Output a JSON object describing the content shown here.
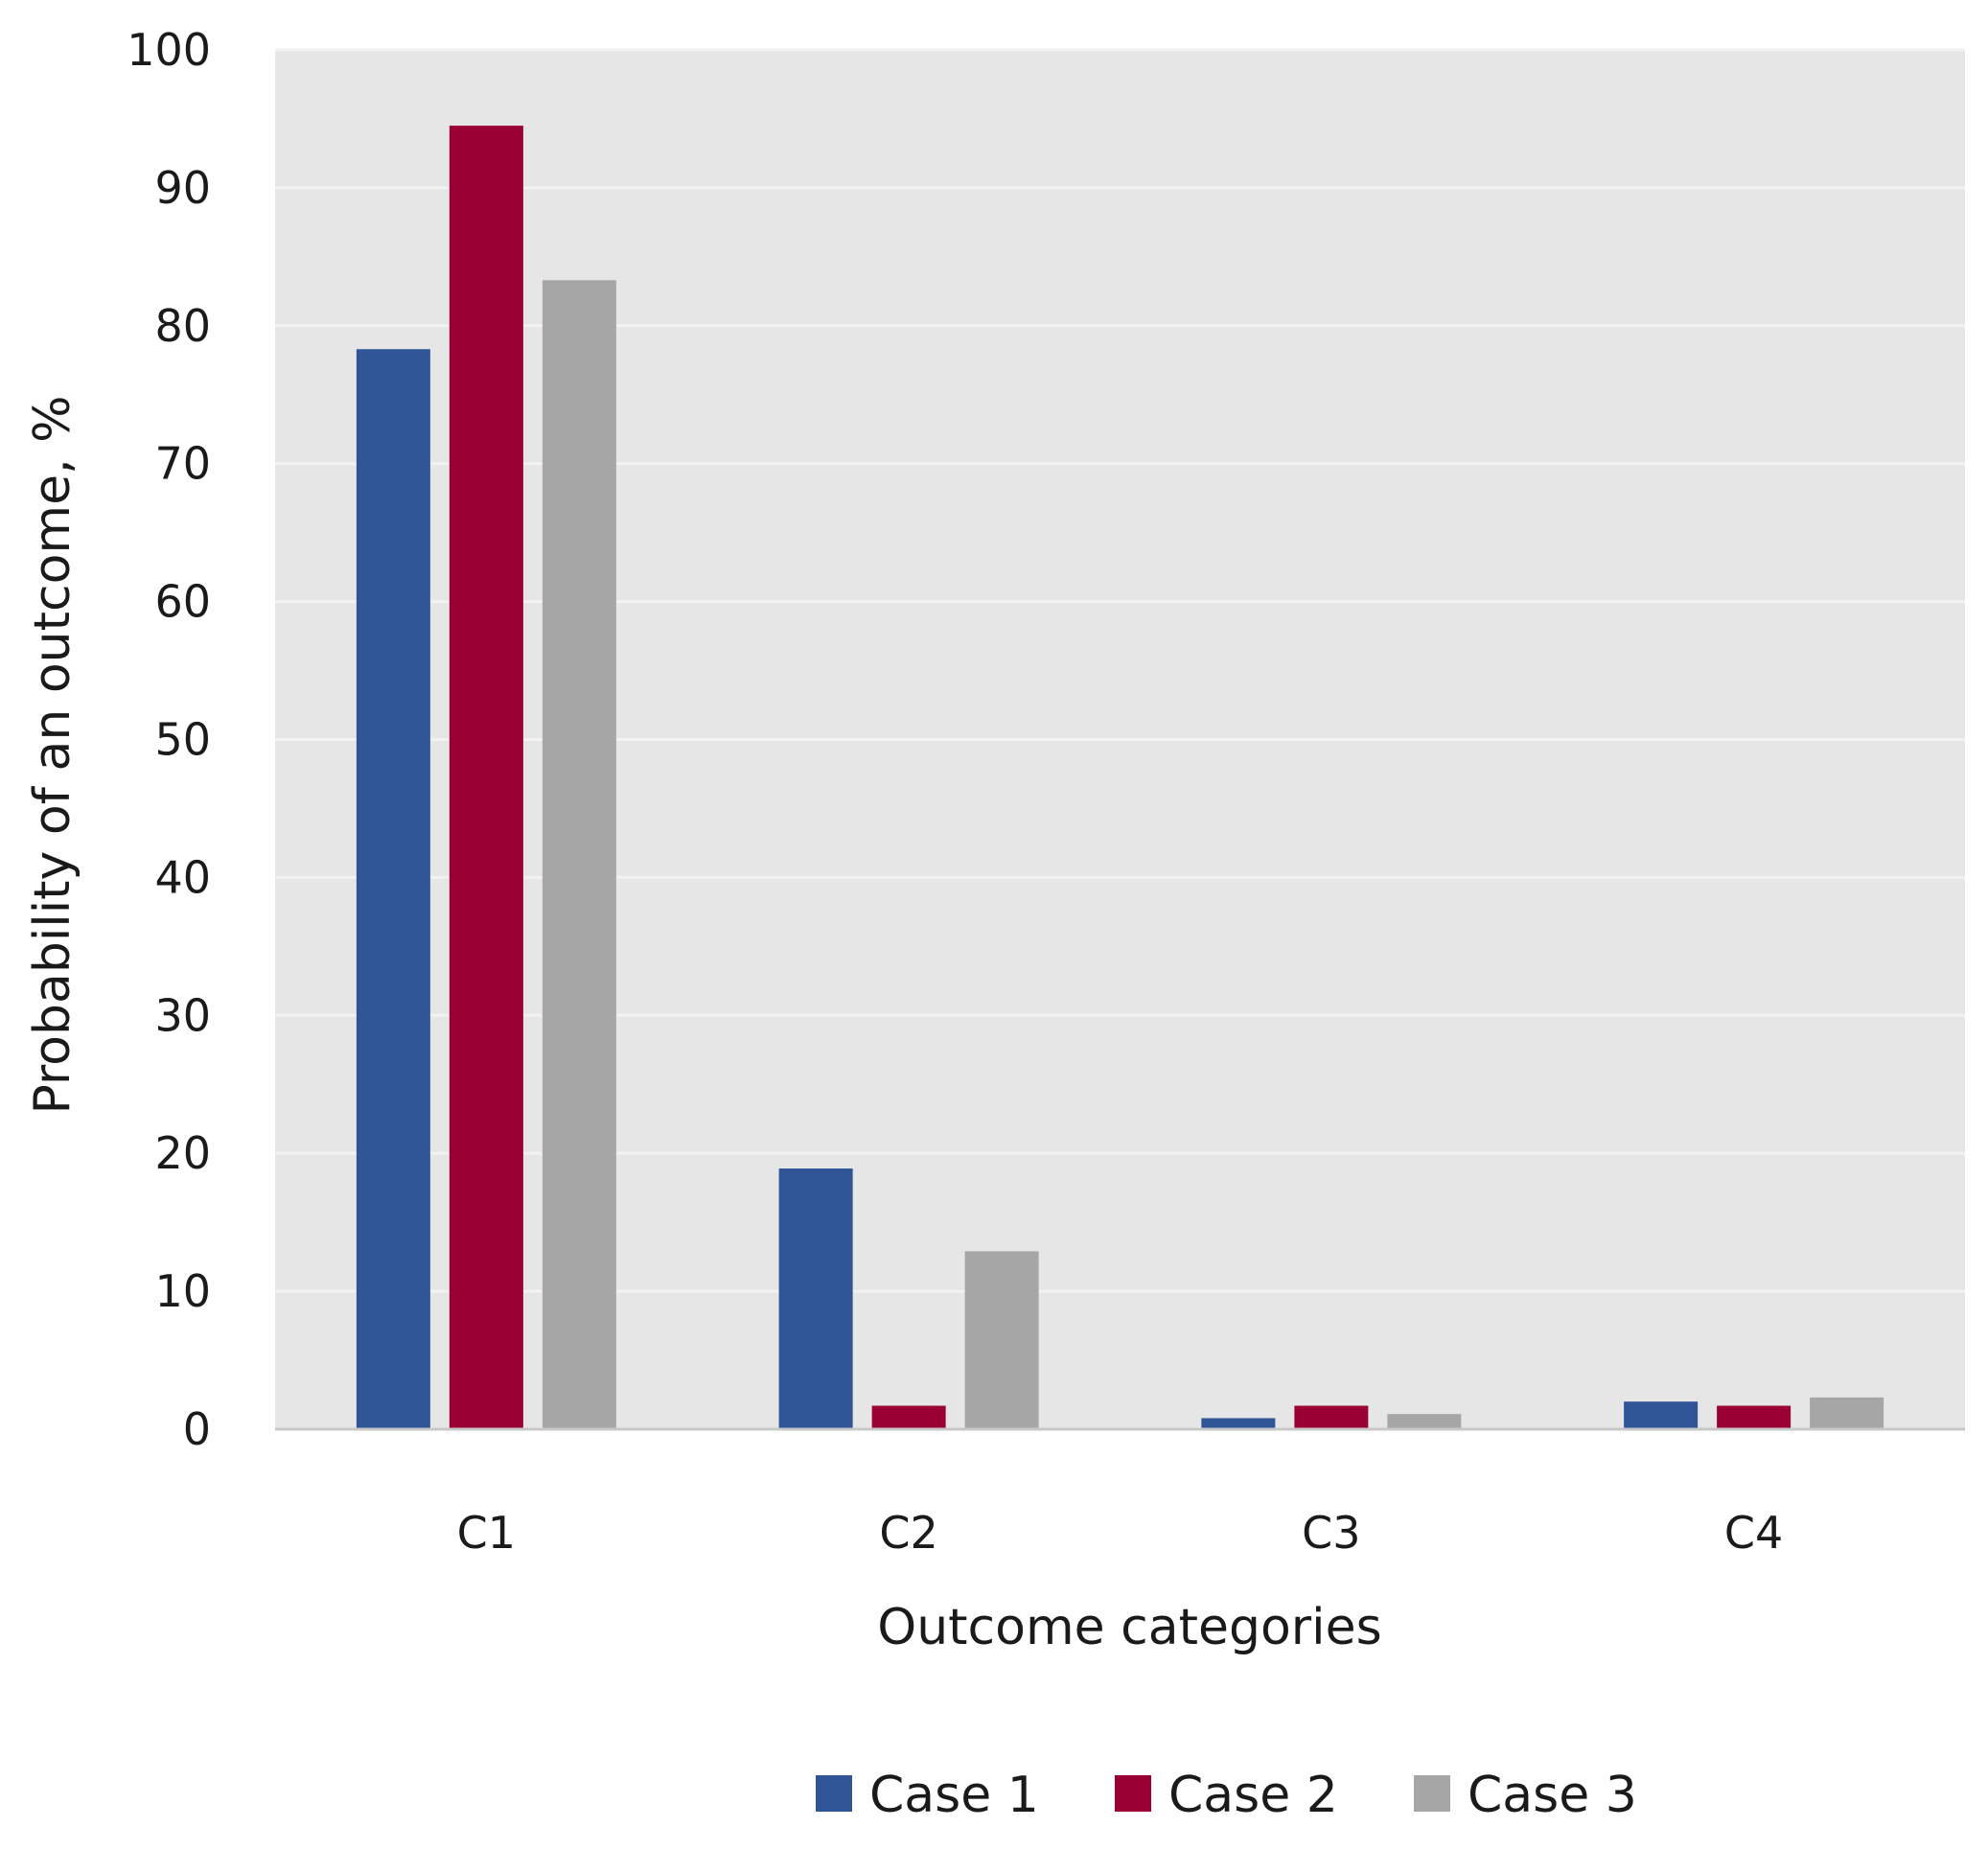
{
  "chart_data": {
    "type": "bar",
    "xlabel": "Outcome categories",
    "ylabel": "Probability of an outcome, %",
    "ylim": [
      0,
      100
    ],
    "yticks": [
      0,
      10,
      20,
      30,
      40,
      50,
      60,
      70,
      80,
      90,
      100
    ],
    "categories": [
      "C1",
      "C2",
      "C3",
      "C4"
    ],
    "series": [
      {
        "name": "Case 1",
        "color": "#2f5596",
        "values": [
          78.3,
          18.9,
          0.8,
          2.0
        ]
      },
      {
        "name": "Case 2",
        "color": "#9b0034",
        "values": [
          94.5,
          1.7,
          1.7,
          1.7
        ]
      },
      {
        "name": "Case 3",
        "color": "#a6a6a6",
        "values": [
          83.3,
          12.9,
          1.1,
          2.3
        ]
      }
    ],
    "grid": true,
    "plot_background": "#e6e6e6",
    "gridline_color": "#f2f2f2",
    "legend_position": "bottom"
  }
}
